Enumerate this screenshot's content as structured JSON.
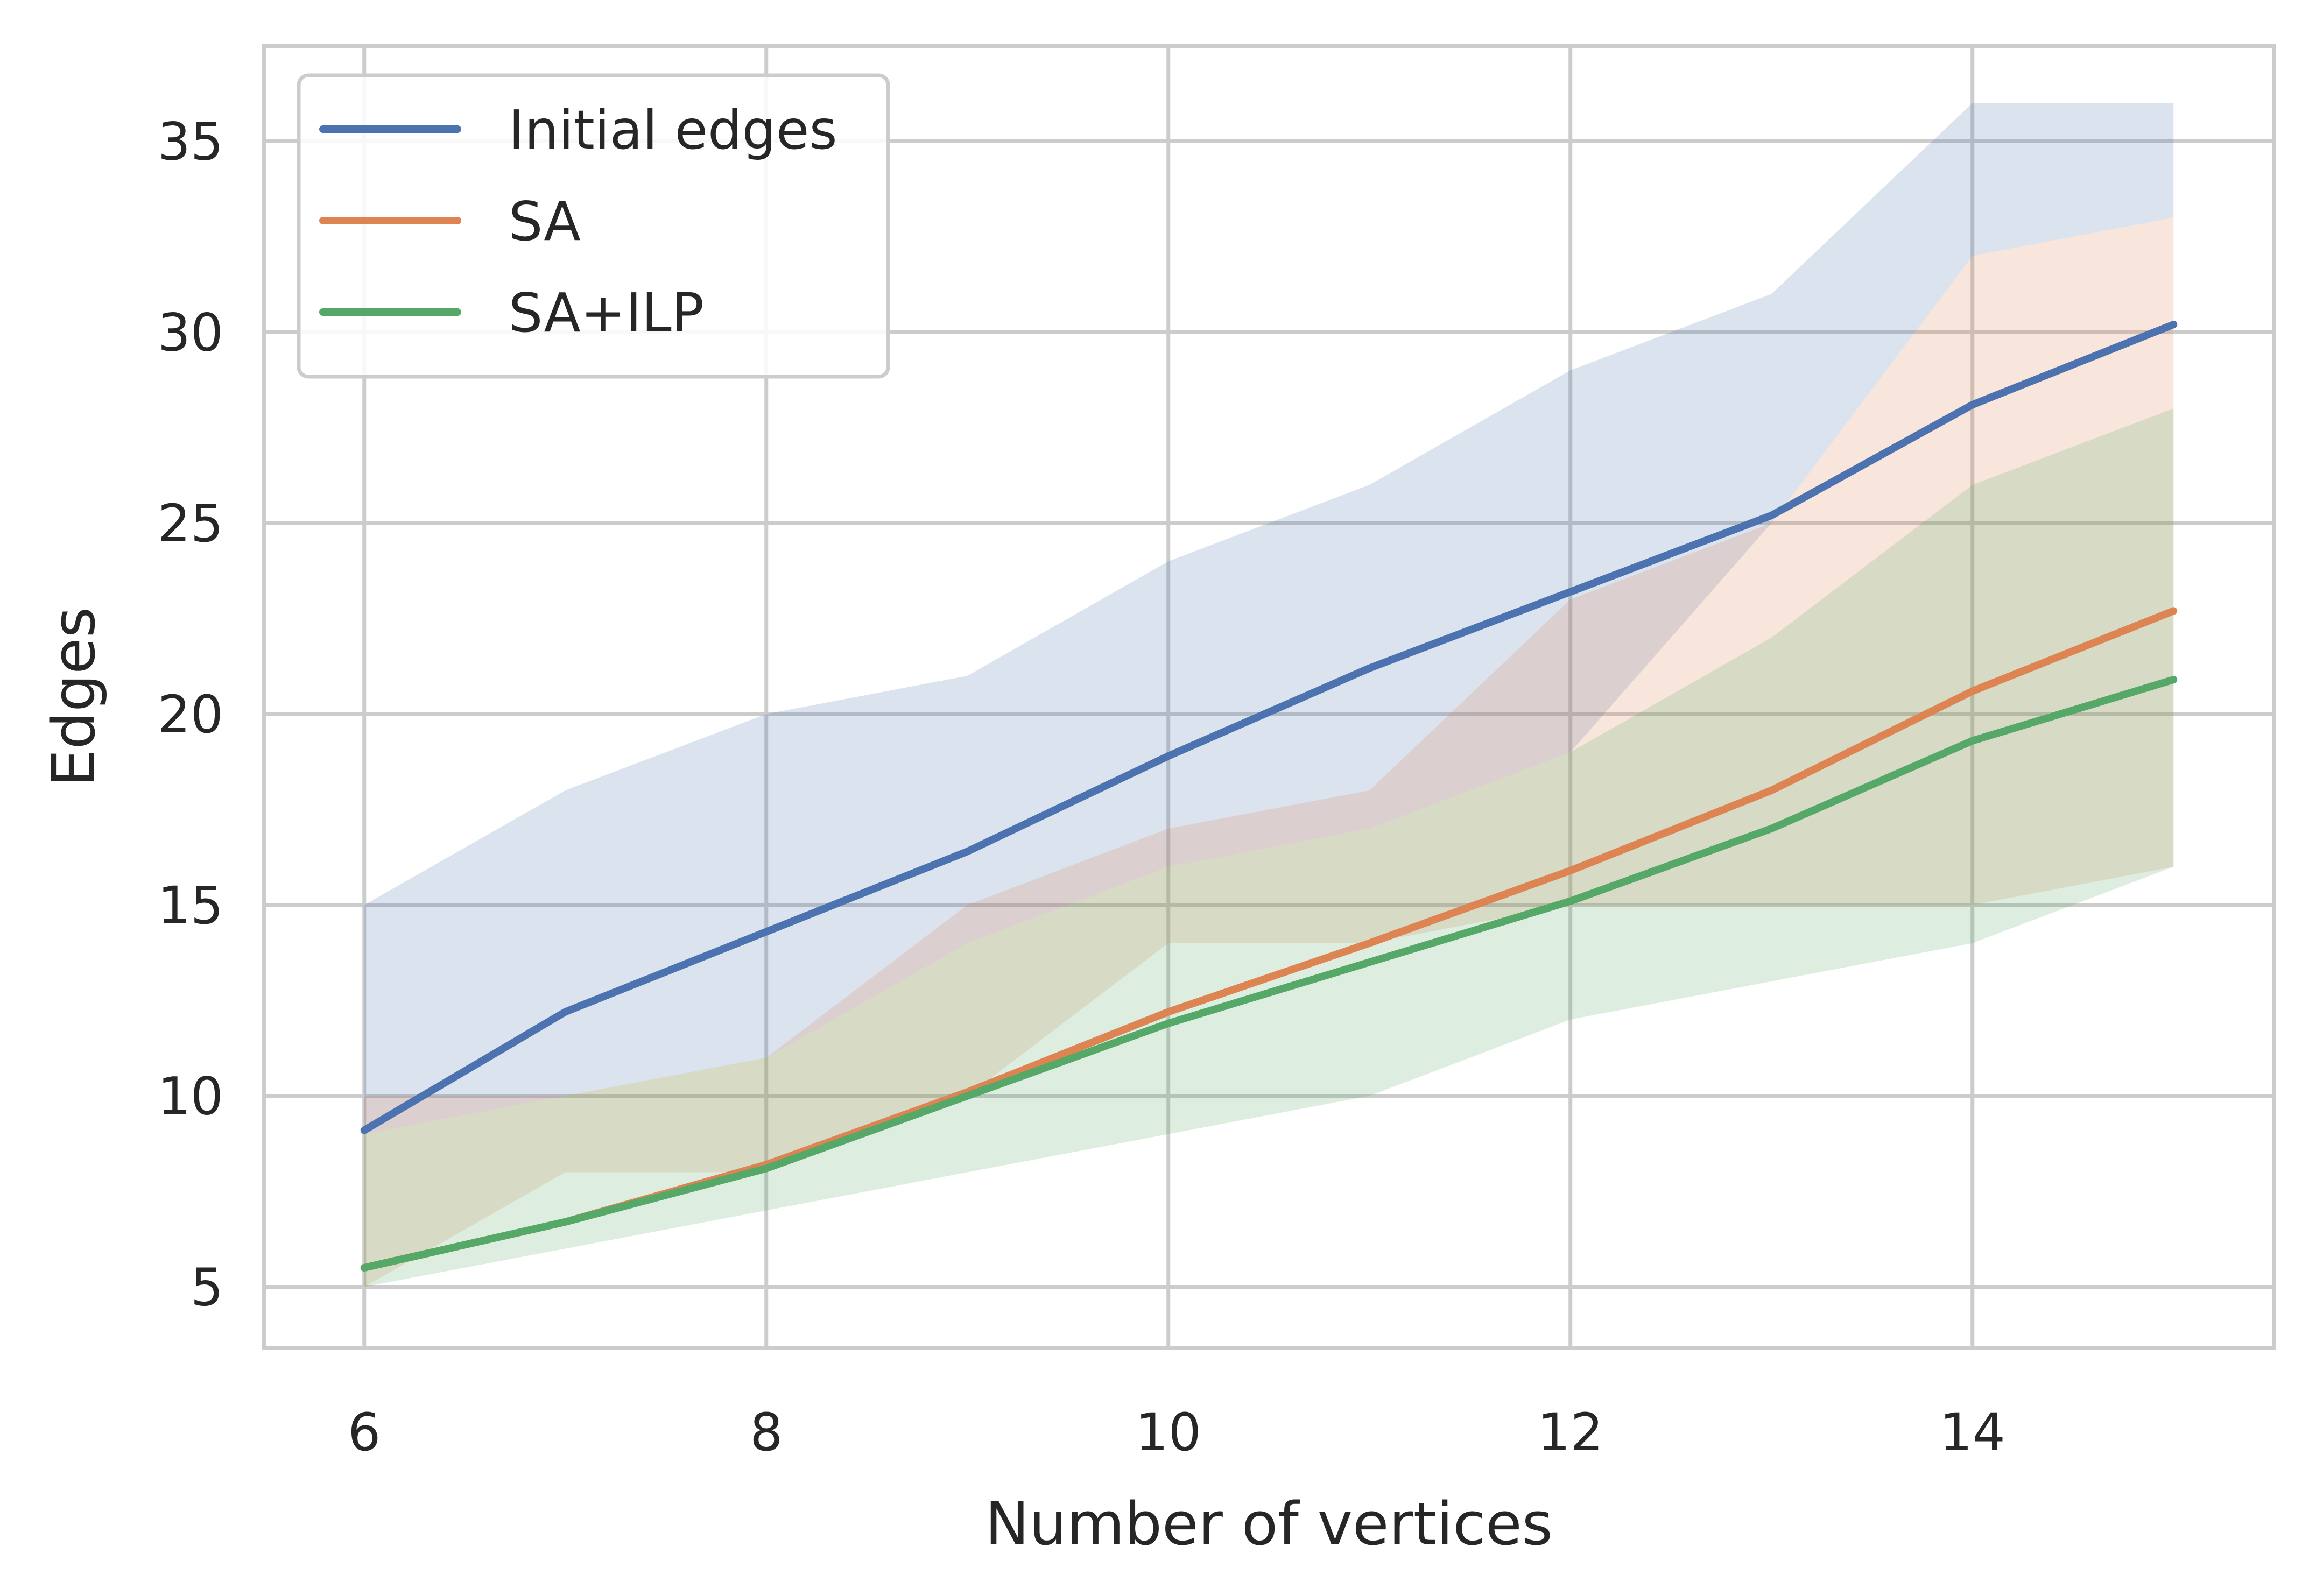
{
  "chart_data": {
    "type": "line",
    "title": "",
    "xlabel": "Number of vertices",
    "ylabel": "Edges",
    "x": [
      6,
      7,
      8,
      9,
      10,
      11,
      12,
      13,
      14,
      15
    ],
    "xlim": [
      5.5,
      15.5
    ],
    "ylim": [
      3.4,
      37.5
    ],
    "xticks": [
      6,
      8,
      10,
      12,
      14
    ],
    "yticks": [
      5,
      10,
      15,
      20,
      25,
      30,
      35
    ],
    "grid": true,
    "legend_position": "top-left",
    "series": [
      {
        "name": "Initial edges",
        "color": "#4c72b0",
        "values": [
          9.1,
          12.2,
          14.3,
          16.4,
          18.9,
          21.2,
          23.2,
          25.2,
          28.1,
          30.2
        ],
        "band_upper": [
          15,
          18,
          20,
          21,
          24,
          26,
          29,
          31,
          36,
          36
        ],
        "band_lower": [
          9,
          10,
          11,
          14,
          16,
          17,
          19,
          25,
          32,
          33
        ]
      },
      {
        "name": "SA",
        "color": "#dd8452",
        "values": [
          5.5,
          6.7,
          8.2,
          10.1,
          12.2,
          14.0,
          15.9,
          18.0,
          20.6,
          22.7
        ],
        "band_upper": [
          10,
          10,
          11,
          15,
          17,
          18,
          23,
          25,
          32,
          33
        ],
        "band_lower": [
          5,
          8,
          8,
          10,
          14,
          14,
          15,
          15,
          15,
          16
        ]
      },
      {
        "name": "SA+ILP",
        "color": "#55a868",
        "values": [
          5.5,
          6.7,
          8.1,
          10.0,
          11.9,
          13.5,
          15.1,
          17.0,
          19.3,
          20.9
        ],
        "band_upper": [
          9,
          10,
          11,
          14,
          16,
          17,
          19,
          22,
          26,
          28
        ],
        "band_lower": [
          5,
          6,
          7,
          8,
          9,
          10,
          12,
          13,
          14,
          16
        ]
      }
    ]
  }
}
